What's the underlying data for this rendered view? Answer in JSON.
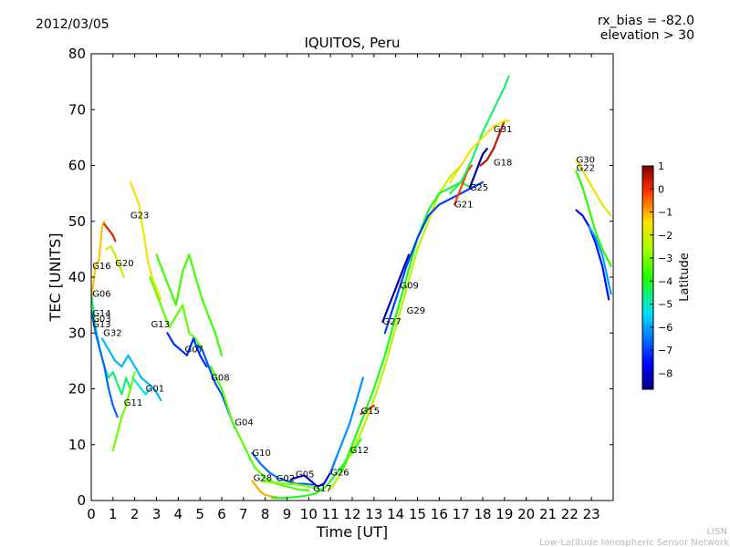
{
  "header": {
    "date": "2012/03/05",
    "rx_bias": "rx_bias = -82.0",
    "elevation": "elevation > 30"
  },
  "footer": {
    "line1": "LISN",
    "line2": "Low-Latitude Ionospheric Sensor Network"
  },
  "colorbar": {
    "label": "Latitude",
    "min": -8.7,
    "max": 1.0,
    "ticks": [
      "1",
      "0",
      "−1",
      "−2",
      "−3",
      "−4",
      "−5",
      "−6",
      "−7",
      "−8"
    ],
    "tick_values": [
      1,
      0,
      -1,
      -2,
      -3,
      -4,
      -5,
      -6,
      -7,
      -8
    ]
  },
  "chart_data": {
    "type": "scatter",
    "title": "IQUITOS, Peru",
    "xlabel": "Time [UT]",
    "ylabel": "TEC [UNITS]",
    "xlim": [
      0,
      24
    ],
    "ylim": [
      0,
      80
    ],
    "xticks": [
      0,
      1,
      2,
      3,
      4,
      5,
      6,
      7,
      8,
      9,
      10,
      11,
      12,
      13,
      14,
      15,
      16,
      17,
      18,
      19,
      20,
      21,
      22,
      23
    ],
    "yticks": [
      0,
      10,
      20,
      30,
      40,
      50,
      60,
      70,
      80
    ],
    "satellite_labels": [
      {
        "label": "G16",
        "x": 0.05,
        "y": 41.5
      },
      {
        "label": "G20",
        "x": 1.1,
        "y": 42
      },
      {
        "label": "G23",
        "x": 1.8,
        "y": 50.5
      },
      {
        "label": "G06",
        "x": 0.05,
        "y": 36.5
      },
      {
        "label": "G14",
        "x": 0.05,
        "y": 33
      },
      {
        "label": "G03",
        "x": 0.05,
        "y": 32
      },
      {
        "label": "G13",
        "x": 0.05,
        "y": 31
      },
      {
        "label": "G32",
        "x": 0.55,
        "y": 29.5
      },
      {
        "label": "G13",
        "x": 2.75,
        "y": 31
      },
      {
        "label": "G07",
        "x": 4.3,
        "y": 26.5
      },
      {
        "label": "G01",
        "x": 2.5,
        "y": 19.5
      },
      {
        "label": "G11",
        "x": 1.5,
        "y": 17
      },
      {
        "label": "G08",
        "x": 5.5,
        "y": 21.5
      },
      {
        "label": "G04",
        "x": 6.6,
        "y": 13.5
      },
      {
        "label": "G10",
        "x": 7.4,
        "y": 8
      },
      {
        "label": "G28",
        "x": 7.45,
        "y": 3.5
      },
      {
        "label": "G02",
        "x": 8.5,
        "y": 3.4
      },
      {
        "label": "G05",
        "x": 9.4,
        "y": 4.2
      },
      {
        "label": "G17",
        "x": 10.2,
        "y": 1.6
      },
      {
        "label": "G26",
        "x": 11.0,
        "y": 4.5
      },
      {
        "label": "G12",
        "x": 11.9,
        "y": 8.5
      },
      {
        "label": "G15",
        "x": 12.4,
        "y": 15.5
      },
      {
        "label": "G27",
        "x": 13.4,
        "y": 31.5
      },
      {
        "label": "G09",
        "x": 14.2,
        "y": 38
      },
      {
        "label": "G29",
        "x": 14.5,
        "y": 33.5
      },
      {
        "label": "G21",
        "x": 16.7,
        "y": 52.5
      },
      {
        "label": "G25",
        "x": 17.4,
        "y": 55.5
      },
      {
        "label": "G18",
        "x": 18.5,
        "y": 60
      },
      {
        "label": "G31",
        "x": 18.5,
        "y": 66
      },
      {
        "label": "G30",
        "x": 22.3,
        "y": 60.5
      },
      {
        "label": "G22",
        "x": 22.3,
        "y": 59
      }
    ],
    "series": [
      {
        "name": "G16",
        "lat": -1.2,
        "x": [
          0,
          0.2,
          0.35,
          0.5,
          0.6
        ],
        "y": [
          36,
          42,
          43,
          49,
          50
        ]
      },
      {
        "name": "G16b",
        "lat": 0.2,
        "x": [
          0.6,
          0.8,
          1.0,
          1.1
        ],
        "y": [
          49.5,
          48.5,
          47.5,
          46.5
        ]
      },
      {
        "name": "G20",
        "lat": -2.2,
        "x": [
          0.7,
          0.9,
          1.1,
          1.3,
          1.5
        ],
        "y": [
          45,
          45.5,
          44,
          42,
          40
        ]
      },
      {
        "name": "G06",
        "lat": -4.6,
        "x": [
          0,
          0.2,
          0.4,
          0.6,
          0.8,
          1.0,
          1.2,
          1.4,
          1.6,
          1.8
        ],
        "y": [
          37,
          31,
          27,
          24,
          22,
          23,
          21,
          19,
          22,
          20
        ]
      },
      {
        "name": "G14",
        "lat": -6.6,
        "x": [
          0,
          0.2,
          0.4,
          0.6,
          0.8,
          1.0,
          1.2
        ],
        "y": [
          34,
          30,
          27,
          24,
          20,
          17,
          15
        ]
      },
      {
        "name": "G32",
        "lat": -5.8,
        "x": [
          0.5,
          0.8,
          1.1,
          1.4,
          1.7,
          2.0,
          2.3,
          2.6,
          2.9,
          3.2
        ],
        "y": [
          29,
          27,
          25,
          24,
          26,
          24,
          22,
          21,
          20,
          18
        ]
      },
      {
        "name": "G23",
        "lat": -1.6,
        "x": [
          1.8,
          2.0,
          2.2,
          2.4,
          2.6,
          2.8,
          3.0,
          3.2
        ],
        "y": [
          57,
          55,
          53,
          48,
          43,
          40,
          38,
          36
        ]
      },
      {
        "name": "G13b",
        "lat": -3.3,
        "x": [
          2.7,
          3.0,
          3.3,
          3.6,
          3.9,
          4.2,
          4.5,
          4.8,
          5.1
        ],
        "y": [
          40,
          37,
          34,
          31,
          33,
          35,
          30,
          29,
          27
        ]
      },
      {
        "name": "G07",
        "lat": -7.2,
        "x": [
          3.5,
          3.8,
          4.1,
          4.4,
          4.7,
          5.0,
          5.3
        ],
        "y": [
          30,
          28,
          27,
          26,
          29,
          26,
          24
        ]
      },
      {
        "name": "G01",
        "lat": -5.4,
        "x": [
          1.9,
          2.1,
          2.3,
          2.5,
          2.7
        ],
        "y": [
          22,
          21,
          20,
          19,
          20
        ]
      },
      {
        "name": "G11",
        "lat": -3.2,
        "x": [
          1.0,
          1.2,
          1.4,
          1.6,
          1.8,
          2.0
        ],
        "y": [
          9,
          12,
          15,
          17,
          20,
          23
        ]
      },
      {
        "name": "G03",
        "lat": -3.6,
        "x": [
          3.0,
          3.3,
          3.6,
          3.9,
          4.2,
          4.5,
          4.8,
          5.1,
          5.4,
          5.7,
          6.0
        ],
        "y": [
          44,
          41,
          38,
          35,
          41,
          44,
          40,
          36,
          33,
          30,
          26
        ]
      },
      {
        "name": "G08",
        "lat": -6.8,
        "x": [
          4.8,
          5.1,
          5.4,
          5.7,
          6.0,
          6.3,
          6.6
        ],
        "y": [
          28,
          27,
          24,
          21,
          19,
          16,
          13
        ]
      },
      {
        "name": "G04",
        "lat": -3.4,
        "x": [
          5.5,
          6.0,
          6.5,
          7.0,
          7.5,
          8.0,
          8.5,
          9.0,
          9.5,
          10.0
        ],
        "y": [
          24,
          20,
          14,
          10,
          6,
          4,
          3,
          2.5,
          2,
          1.8
        ]
      },
      {
        "name": "G10",
        "lat": -6.5,
        "x": [
          7.4,
          7.8,
          8.2,
          8.6,
          9.0,
          9.4,
          9.8,
          10.2
        ],
        "y": [
          8.5,
          6.5,
          5,
          4,
          3.5,
          3,
          3,
          2.8
        ]
      },
      {
        "name": "G28",
        "lat": -1.0,
        "x": [
          7.4,
          7.6,
          7.8,
          8.0,
          8.2,
          8.5
        ],
        "y": [
          3.5,
          2.5,
          1.5,
          1.0,
          0.8,
          0.6
        ]
      },
      {
        "name": "G02",
        "lat": -3.0,
        "x": [
          7.8,
          8.2,
          8.6,
          9.0,
          9.4,
          9.8,
          10.2,
          10.6
        ],
        "y": [
          3.5,
          3.3,
          3.1,
          3.0,
          2.9,
          2.6,
          2.3,
          2.0
        ]
      },
      {
        "name": "G05",
        "lat": -7.8,
        "x": [
          9.2,
          9.5,
          9.8,
          10.1,
          10.4,
          10.7,
          11.0,
          11.3
        ],
        "y": [
          3.8,
          4.2,
          4.5,
          3.5,
          2.5,
          3,
          5,
          8
        ]
      },
      {
        "name": "G17",
        "lat": -4.0,
        "x": [
          8.3,
          8.8,
          9.3,
          9.8,
          10.3,
          10.8,
          11.2,
          11.6,
          12.0,
          12.4
        ],
        "y": [
          0.5,
          0.4,
          0.6,
          0.8,
          1.2,
          2.5,
          4.5,
          6.5,
          8.5,
          11
        ]
      },
      {
        "name": "G26",
        "lat": -6.2,
        "x": [
          11.0,
          11.3,
          11.6,
          11.9,
          12.2,
          12.5
        ],
        "y": [
          5,
          8,
          11,
          14,
          18,
          22
        ]
      },
      {
        "name": "G12",
        "lat": -2.3,
        "x": [
          11.0,
          11.5,
          12.0,
          12.5,
          13.0,
          13.5,
          14.0,
          14.5,
          15.0,
          15.5,
          16.0,
          16.5,
          17.0
        ],
        "y": [
          2,
          5,
          9,
          13,
          18,
          24,
          31,
          38,
          45,
          50,
          55,
          58,
          60
        ]
      },
      {
        "name": "G15",
        "lat": 0.2,
        "x": [
          12.4,
          12.6,
          12.8,
          13.0
        ],
        "y": [
          15.5,
          16,
          16.5,
          17
        ]
      },
      {
        "name": "G29",
        "lat": -4.0,
        "x": [
          11.5,
          12.0,
          12.5,
          13.0,
          13.5,
          14.0,
          14.5,
          15.0,
          15.5,
          16.0,
          16.5,
          17.0,
          17.5
        ],
        "y": [
          5,
          10,
          15,
          20,
          26,
          33,
          40,
          47,
          52,
          55,
          56,
          57,
          56
        ]
      },
      {
        "name": "G27",
        "lat": -8.2,
        "x": [
          13.4,
          13.7,
          14.0,
          14.3,
          14.6
        ],
        "y": [
          32,
          35,
          38,
          41,
          44
        ]
      },
      {
        "name": "G09",
        "lat": -7.0,
        "x": [
          13.5,
          14.0,
          14.5,
          15.0,
          15.5,
          16.0,
          16.5,
          17.0,
          17.5,
          18.0
        ],
        "y": [
          30,
          36,
          42,
          47,
          51,
          53,
          54,
          55,
          56,
          57
        ]
      },
      {
        "name": "G21",
        "lat": -0.2,
        "x": [
          16.7,
          16.9,
          17.1,
          17.3,
          17.5
        ],
        "y": [
          53,
          55,
          57,
          59,
          60
        ]
      },
      {
        "name": "G25",
        "lat": -8.4,
        "x": [
          17.4,
          17.6,
          17.8,
          18.0,
          18.2
        ],
        "y": [
          56,
          58,
          60,
          62,
          63
        ]
      },
      {
        "name": "G18",
        "lat": 0.5,
        "x": [
          17.9,
          18.2,
          18.5,
          18.8,
          19.0
        ],
        "y": [
          60,
          61,
          63,
          66,
          68
        ]
      },
      {
        "name": "G31",
        "lat": -4.5,
        "x": [
          16.5,
          17.0,
          17.5,
          18.0,
          18.5,
          19.0,
          19.2
        ],
        "y": [
          55,
          57,
          61,
          66,
          70,
          74,
          76
        ]
      },
      {
        "name": "G31b",
        "lat": -1.6,
        "x": [
          16.5,
          17.0,
          17.5,
          18.0,
          18.5,
          19.0,
          19.2
        ],
        "y": [
          57,
          60,
          63,
          65,
          67,
          68,
          68
        ]
      },
      {
        "name": "G30",
        "lat": -1.8,
        "x": [
          22.3,
          22.6,
          22.9,
          23.2,
          23.5,
          23.9
        ],
        "y": [
          61,
          59,
          57,
          55,
          53,
          51
        ]
      },
      {
        "name": "G22",
        "lat": -3.8,
        "x": [
          22.3,
          22.6,
          22.9,
          23.2,
          23.5,
          23.9
        ],
        "y": [
          59,
          56,
          52,
          48,
          45,
          42
        ]
      },
      {
        "name": "G22b",
        "lat": -7.5,
        "x": [
          22.3,
          22.6,
          22.9,
          23.2,
          23.5,
          23.8
        ],
        "y": [
          52,
          51,
          49,
          46,
          42,
          36
        ]
      },
      {
        "name": "G22c",
        "lat": -6.0,
        "x": [
          22.9,
          23.2,
          23.5,
          23.9
        ],
        "y": [
          49,
          47,
          44,
          37
        ]
      }
    ]
  }
}
